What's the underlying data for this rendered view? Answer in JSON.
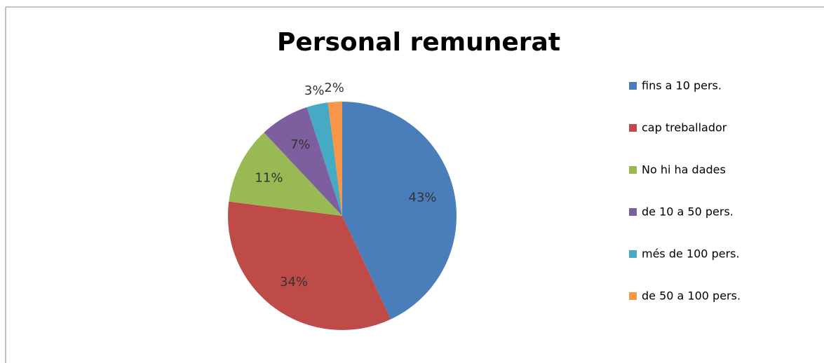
{
  "chart_data": {
    "type": "pie",
    "title": "Personal remunerat",
    "categories": [
      "fins a 10 pers.",
      "cap treballador",
      "No hi ha dades",
      "de 10 a 50 pers.",
      "més de 100 pers.",
      "de 50 a 100 pers."
    ],
    "values": [
      43,
      34,
      11,
      7,
      3,
      2
    ],
    "value_labels": [
      "43%",
      "34%",
      "11%",
      "7%",
      "3%",
      "2%"
    ],
    "colors": [
      "#4a7ebb",
      "#be4b48",
      "#98b954",
      "#7d5fa0",
      "#46aac5",
      "#f79646"
    ],
    "legend": "right"
  }
}
